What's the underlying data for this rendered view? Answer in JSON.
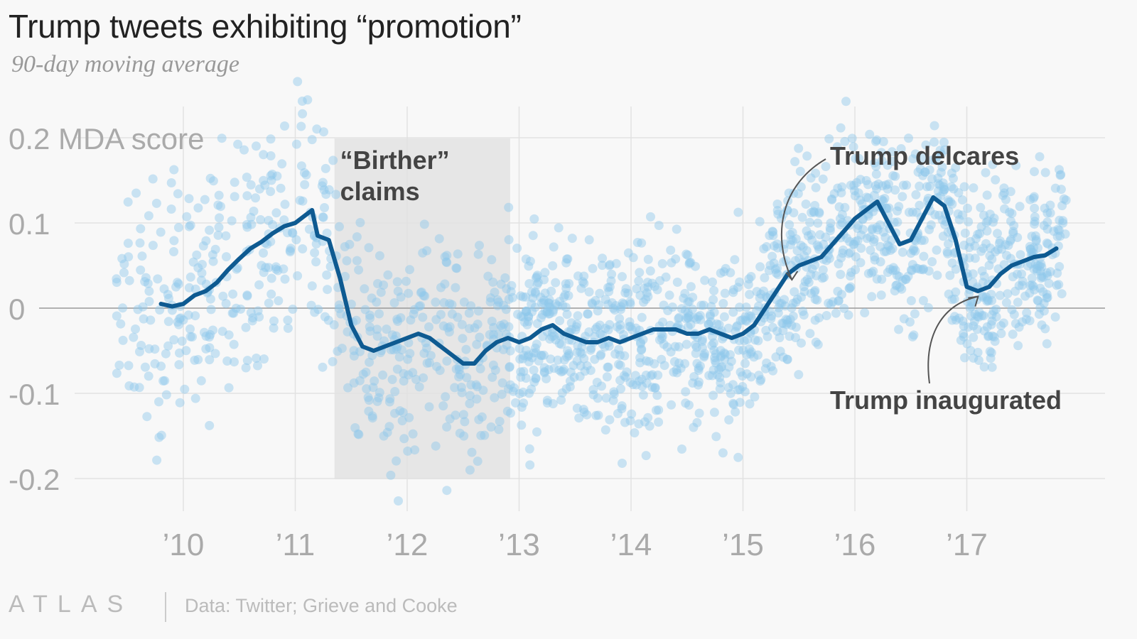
{
  "header": {
    "title": "Trump tweets exhibiting “promotion”",
    "subtitle": "90-day moving average"
  },
  "footer": {
    "logo": "ATLAS",
    "source": "Data: Twitter; Grieve and Cooke"
  },
  "colors": {
    "line": "#0e5a91",
    "dots": "#8ec8ea",
    "shade": "#e6e6e6",
    "grid": "#e2e2e2",
    "zero": "#999999",
    "annotation_text": "#444444",
    "tick_text": "#aaaaaa"
  },
  "chart_data": {
    "type": "line",
    "title": "Trump tweets exhibiting “promotion”",
    "subtitle": "90-day moving average",
    "xlabel": "",
    "ylabel": "MDA score",
    "xlim": [
      2009.35,
      2018.25
    ],
    "ylim": [
      -0.2,
      0.2
    ],
    "x_ticks": [
      2010,
      2011,
      2012,
      2013,
      2014,
      2015,
      2016,
      2017
    ],
    "x_tick_labels": [
      "’10",
      "’11",
      "’12",
      "’13",
      "’14",
      "’15",
      "’16",
      "’17"
    ],
    "y_ticks": [
      0.2,
      0.1,
      0,
      -0.1,
      -0.2
    ],
    "y_tick_labels": [
      "0.2 MDA score",
      "0.1",
      "0",
      "-0.1",
      "-0.2"
    ],
    "grid": true,
    "scatter_note": "individual tweet scores shown as light blue dots",
    "series": [
      {
        "name": "",
        "x": [
          2009.8,
          2009.9,
          2010.0,
          2010.1,
          2010.2,
          2010.3,
          2010.4,
          2010.5,
          2010.6,
          2010.7,
          2010.8,
          2010.9,
          2011.0,
          2011.1,
          2011.15,
          2011.2,
          2011.3,
          2011.4,
          2011.5,
          2011.6,
          2011.7,
          2011.8,
          2011.9,
          2012.0,
          2012.1,
          2012.2,
          2012.3,
          2012.4,
          2012.5,
          2012.6,
          2012.7,
          2012.8,
          2012.9,
          2013.0,
          2013.1,
          2013.2,
          2013.3,
          2013.4,
          2013.5,
          2013.6,
          2013.7,
          2013.8,
          2013.9,
          2014.0,
          2014.1,
          2014.2,
          2014.3,
          2014.4,
          2014.5,
          2014.6,
          2014.7,
          2014.8,
          2014.9,
          2015.0,
          2015.1,
          2015.2,
          2015.3,
          2015.4,
          2015.5,
          2015.6,
          2015.7,
          2015.8,
          2015.9,
          2016.0,
          2016.1,
          2016.2,
          2016.3,
          2016.4,
          2016.5,
          2016.6,
          2016.7,
          2016.8,
          2016.9,
          2017.0,
          2017.1,
          2017.2,
          2017.3,
          2017.4,
          2017.5,
          2017.6,
          2017.7,
          2017.8
        ],
        "values": [
          0.005,
          0.002,
          0.005,
          0.015,
          0.02,
          0.03,
          0.045,
          0.058,
          0.07,
          0.078,
          0.088,
          0.096,
          0.1,
          0.11,
          0.115,
          0.085,
          0.08,
          0.035,
          -0.02,
          -0.045,
          -0.05,
          -0.045,
          -0.04,
          -0.035,
          -0.03,
          -0.035,
          -0.045,
          -0.055,
          -0.065,
          -0.065,
          -0.05,
          -0.04,
          -0.035,
          -0.04,
          -0.035,
          -0.025,
          -0.02,
          -0.03,
          -0.035,
          -0.04,
          -0.04,
          -0.035,
          -0.04,
          -0.035,
          -0.03,
          -0.025,
          -0.025,
          -0.025,
          -0.03,
          -0.03,
          -0.025,
          -0.03,
          -0.035,
          -0.03,
          -0.02,
          0.0,
          0.02,
          0.04,
          0.05,
          0.055,
          0.06,
          0.075,
          0.09,
          0.105,
          0.115,
          0.125,
          0.1,
          0.075,
          0.08,
          0.105,
          0.13,
          0.12,
          0.08,
          0.025,
          0.02,
          0.025,
          0.04,
          0.05,
          0.055,
          0.06,
          0.062,
          0.07
        ]
      }
    ],
    "shaded_region": {
      "x": [
        2011.35,
        2012.92
      ],
      "label": "“Birther” claims"
    },
    "annotations": [
      {
        "label": "Trump delcares",
        "x": 2015.45,
        "y": 0.03
      },
      {
        "label": "Trump inaugurated",
        "x": 2017.05,
        "y": 0.022
      }
    ]
  }
}
